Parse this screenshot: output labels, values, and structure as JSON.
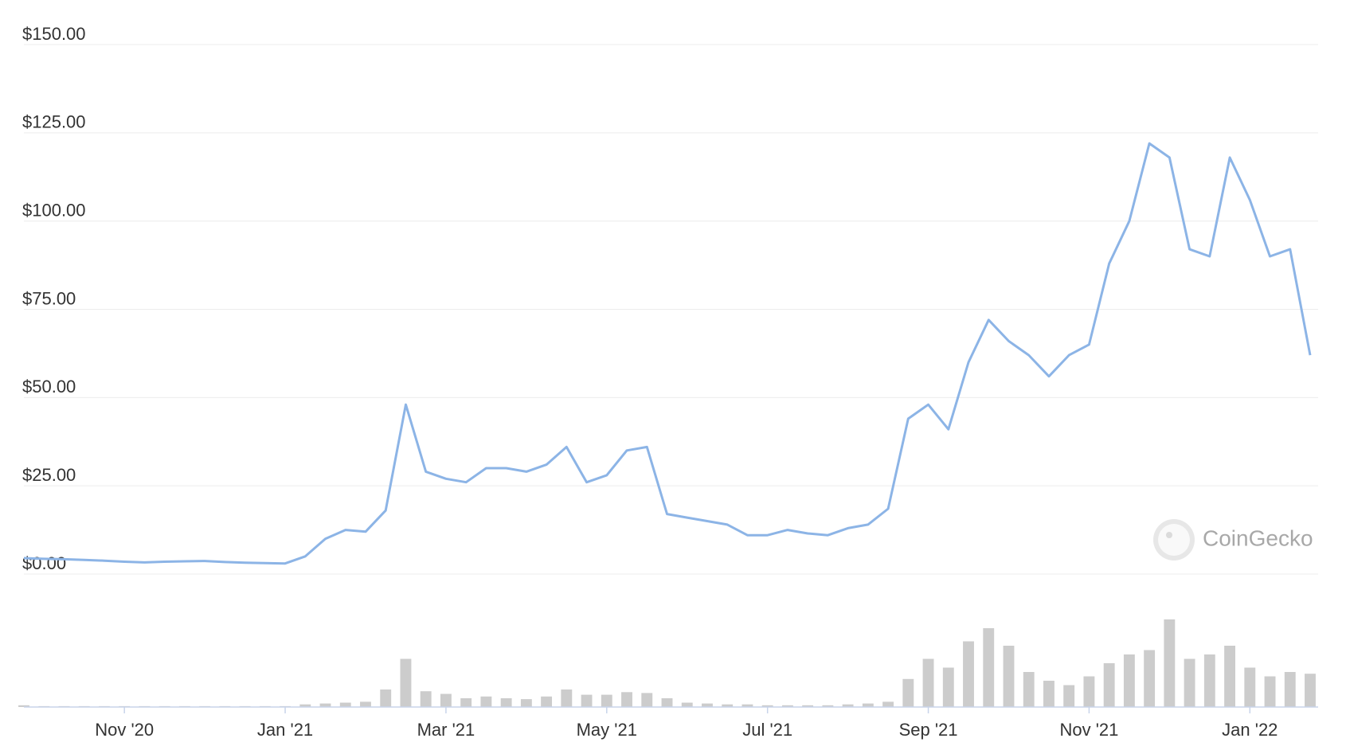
{
  "chart_data": {
    "type": "line",
    "watermark": "CoinGecko",
    "categories": [
      null,
      null,
      null,
      null,
      null,
      "Nov '20",
      null,
      null,
      null,
      null,
      null,
      null,
      null,
      "Jan '21",
      null,
      null,
      null,
      null,
      null,
      null,
      null,
      "Mar '21",
      null,
      null,
      null,
      null,
      null,
      null,
      null,
      "May '21",
      null,
      null,
      null,
      null,
      null,
      null,
      null,
      "Jul '21",
      null,
      null,
      null,
      null,
      null,
      null,
      null,
      "Sep '21",
      null,
      null,
      null,
      null,
      null,
      null,
      null,
      "Nov '21",
      null,
      null,
      null,
      null,
      null,
      null,
      null,
      "Jan '22",
      null,
      null,
      null
    ],
    "series": [
      {
        "color": "#8cb4e6",
        "values": [
          4.5,
          4.3,
          4.2,
          4.0,
          3.8,
          3.5,
          3.3,
          3.5,
          3.6,
          3.7,
          3.4,
          3.2,
          3.1,
          3.0,
          5,
          10,
          12.5,
          12,
          18,
          48,
          29,
          27,
          26,
          30,
          30,
          29,
          31,
          36,
          26,
          28,
          35,
          36,
          17,
          16,
          15,
          14,
          11,
          11,
          12.5,
          11.5,
          11,
          13,
          14,
          18.5,
          44,
          48,
          41,
          60,
          72,
          66,
          62,
          56,
          62,
          65,
          88,
          100,
          122,
          118,
          92,
          90,
          118,
          106,
          90,
          92,
          62
        ]
      }
    ],
    "volume": {
      "color": "#cccccc",
      "values": [
        2,
        1,
        1,
        1,
        1,
        1,
        1,
        1,
        1,
        1,
        1,
        1,
        1,
        1,
        3,
        4,
        5,
        6,
        20,
        55,
        18,
        15,
        10,
        12,
        10,
        9,
        12,
        20,
        14,
        14,
        17,
        16,
        10,
        5,
        4,
        3,
        3,
        2,
        2,
        2,
        2,
        3,
        4,
        6,
        32,
        55,
        45,
        75,
        90,
        70,
        40,
        30,
        25,
        35,
        50,
        60,
        65,
        100,
        55,
        60,
        70,
        45,
        35,
        40,
        38
      ]
    },
    "ylim": [
      0,
      150
    ],
    "yticks": [
      {
        "value": 0,
        "label": "$0.00"
      },
      {
        "value": 25,
        "label": "$25.00"
      },
      {
        "value": 50,
        "label": "$50.00"
      },
      {
        "value": 75,
        "label": "$75.00"
      },
      {
        "value": 100,
        "label": "$100.00"
      },
      {
        "value": 125,
        "label": "$125.00"
      },
      {
        "value": 150,
        "label": "$150.00"
      }
    ],
    "grid": true
  }
}
